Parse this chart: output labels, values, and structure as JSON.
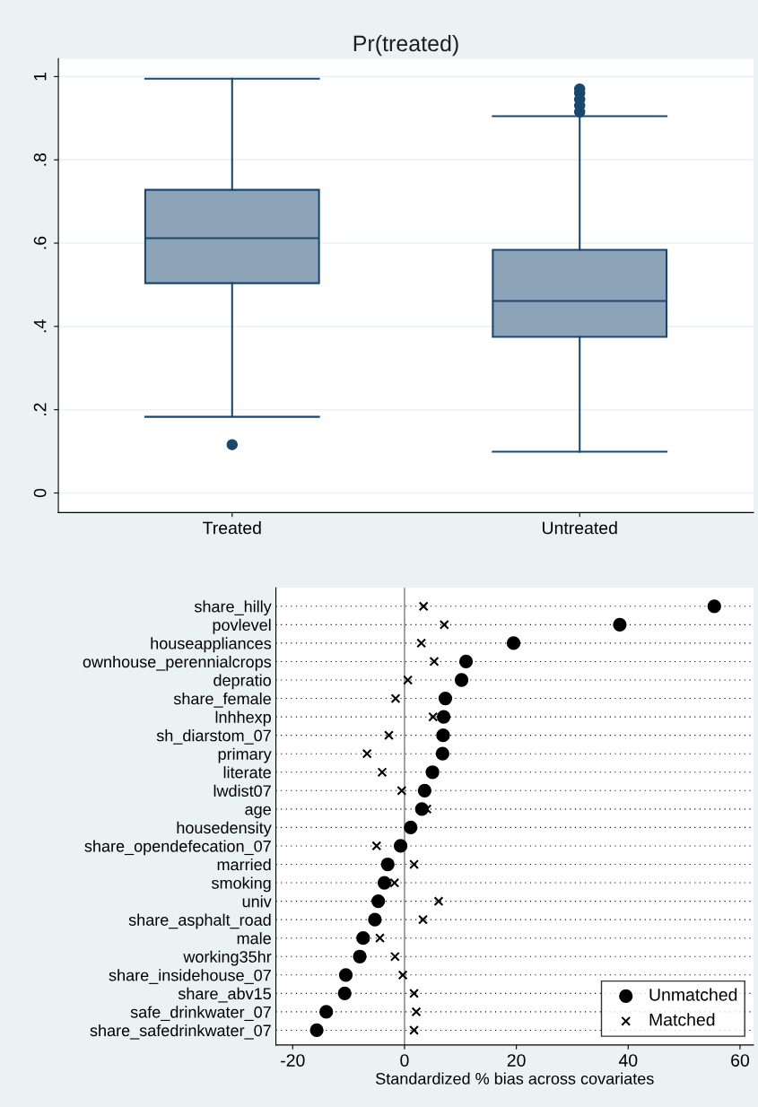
{
  "chart_data": [
    {
      "type": "box",
      "title": "Pr(treated)",
      "categories": [
        "Treated",
        "Untreated"
      ],
      "color": "#8da3b8",
      "boxes": [
        {
          "low": 0.183,
          "q1": 0.504,
          "median": 0.612,
          "q3": 0.728,
          "high": 0.995,
          "outliers": [
            0.116
          ]
        },
        {
          "low": 0.099,
          "q1": 0.375,
          "median": 0.461,
          "q3": 0.584,
          "high": 0.905,
          "outliers": [
            0.915,
            0.93,
            0.945,
            0.96,
            0.97
          ]
        }
      ],
      "ylim": [
        -0.047,
        1.043
      ],
      "yticks": [
        0,
        {
          "value": 0.2,
          "label": ".2"
        },
        {
          "value": 0.4,
          "label": ".4"
        },
        {
          "value": 0.6,
          "label": ".6"
        },
        {
          "value": 0.8,
          "label": ".8"
        },
        1
      ],
      "grid": "y"
    },
    {
      "type": "scatter",
      "orientation": "horizontal",
      "xlabel": "Standardized % bias across covariates",
      "categories": [
        "share_hilly",
        "povlevel",
        "houseappliances",
        "ownhouse_perennialcrops",
        "depratio",
        "share_female",
        "lnhhexp",
        "sh_diarstom_07",
        "primary",
        "literate",
        "lwdist07",
        "age",
        "housedensity",
        "share_opendefecation_07",
        "married",
        "smoking",
        "univ",
        "share_asphalt_road",
        "male",
        "working35hr",
        "share_insidehouse_07",
        "share_abv15",
        "safe_drinkwater_07",
        "share_safedrinkwater_07"
      ],
      "series": [
        {
          "name": "Unmatched",
          "color": "#000000",
          "marker": "circle",
          "values": [
            55.4,
            38.5,
            19.5,
            11.0,
            10.2,
            7.3,
            7.0,
            6.9,
            6.8,
            5.0,
            3.6,
            3.1,
            1.1,
            -0.7,
            -3.0,
            -3.6,
            -4.7,
            -5.3,
            -7.4,
            -8.0,
            -10.5,
            -10.7,
            -14.0,
            -15.7
          ]
        },
        {
          "name": "Matched",
          "color": "#000000",
          "marker": "cross",
          "values": [
            3.4,
            7.1,
            3.0,
            5.3,
            0.6,
            -1.6,
            5.1,
            -2.8,
            -6.7,
            -4.0,
            -0.5,
            4.0,
            null,
            -5.0,
            1.7,
            -1.8,
            6.1,
            3.3,
            -4.4,
            -1.7,
            -0.3,
            1.7,
            2.1,
            1.7
          ]
        }
      ],
      "xlim": [
        -23.0,
        62.4
      ],
      "xticks": [
        -20,
        0,
        20,
        40,
        60
      ],
      "ref_lines": [
        {
          "axis": "x",
          "value": 0,
          "color": "#999999"
        }
      ],
      "grid": "y",
      "legend": "bottom right"
    }
  ]
}
